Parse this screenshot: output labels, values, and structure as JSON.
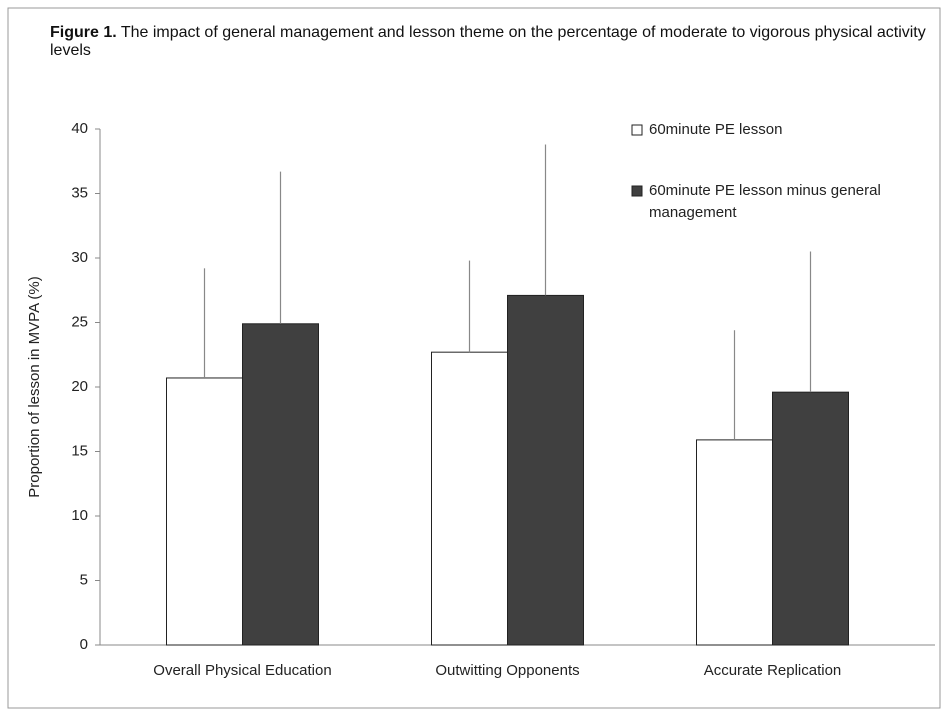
{
  "chart_data": {
    "type": "bar",
    "title_prefix": "Figure 1.",
    "title": "The  impact of general management  and lesson theme  on the percentage of moderate to vigorous physical activity levels",
    "y_label": "Proportion of lesson in MVPA (%)",
    "categories": [
      "Overall Physical Education",
      "Outwitting Opponents",
      "Accurate Replication"
    ],
    "series": [
      {
        "name": "60minute PE lesson",
        "color": "#ffffff",
        "values": [
          20.7,
          22.7,
          15.9
        ],
        "errors": [
          8.5,
          7.1,
          8.5
        ]
      },
      {
        "name": "60minute PE lesson minus general management",
        "color": "#404040",
        "values": [
          24.9,
          27.1,
          19.6
        ],
        "errors": [
          11.8,
          11.7,
          10.9
        ]
      }
    ],
    "ylim": [
      0,
      40
    ],
    "yticks": [
      0,
      5,
      10,
      15,
      20,
      25,
      30,
      35,
      40
    ],
    "grid": false,
    "legend": "top-right"
  }
}
